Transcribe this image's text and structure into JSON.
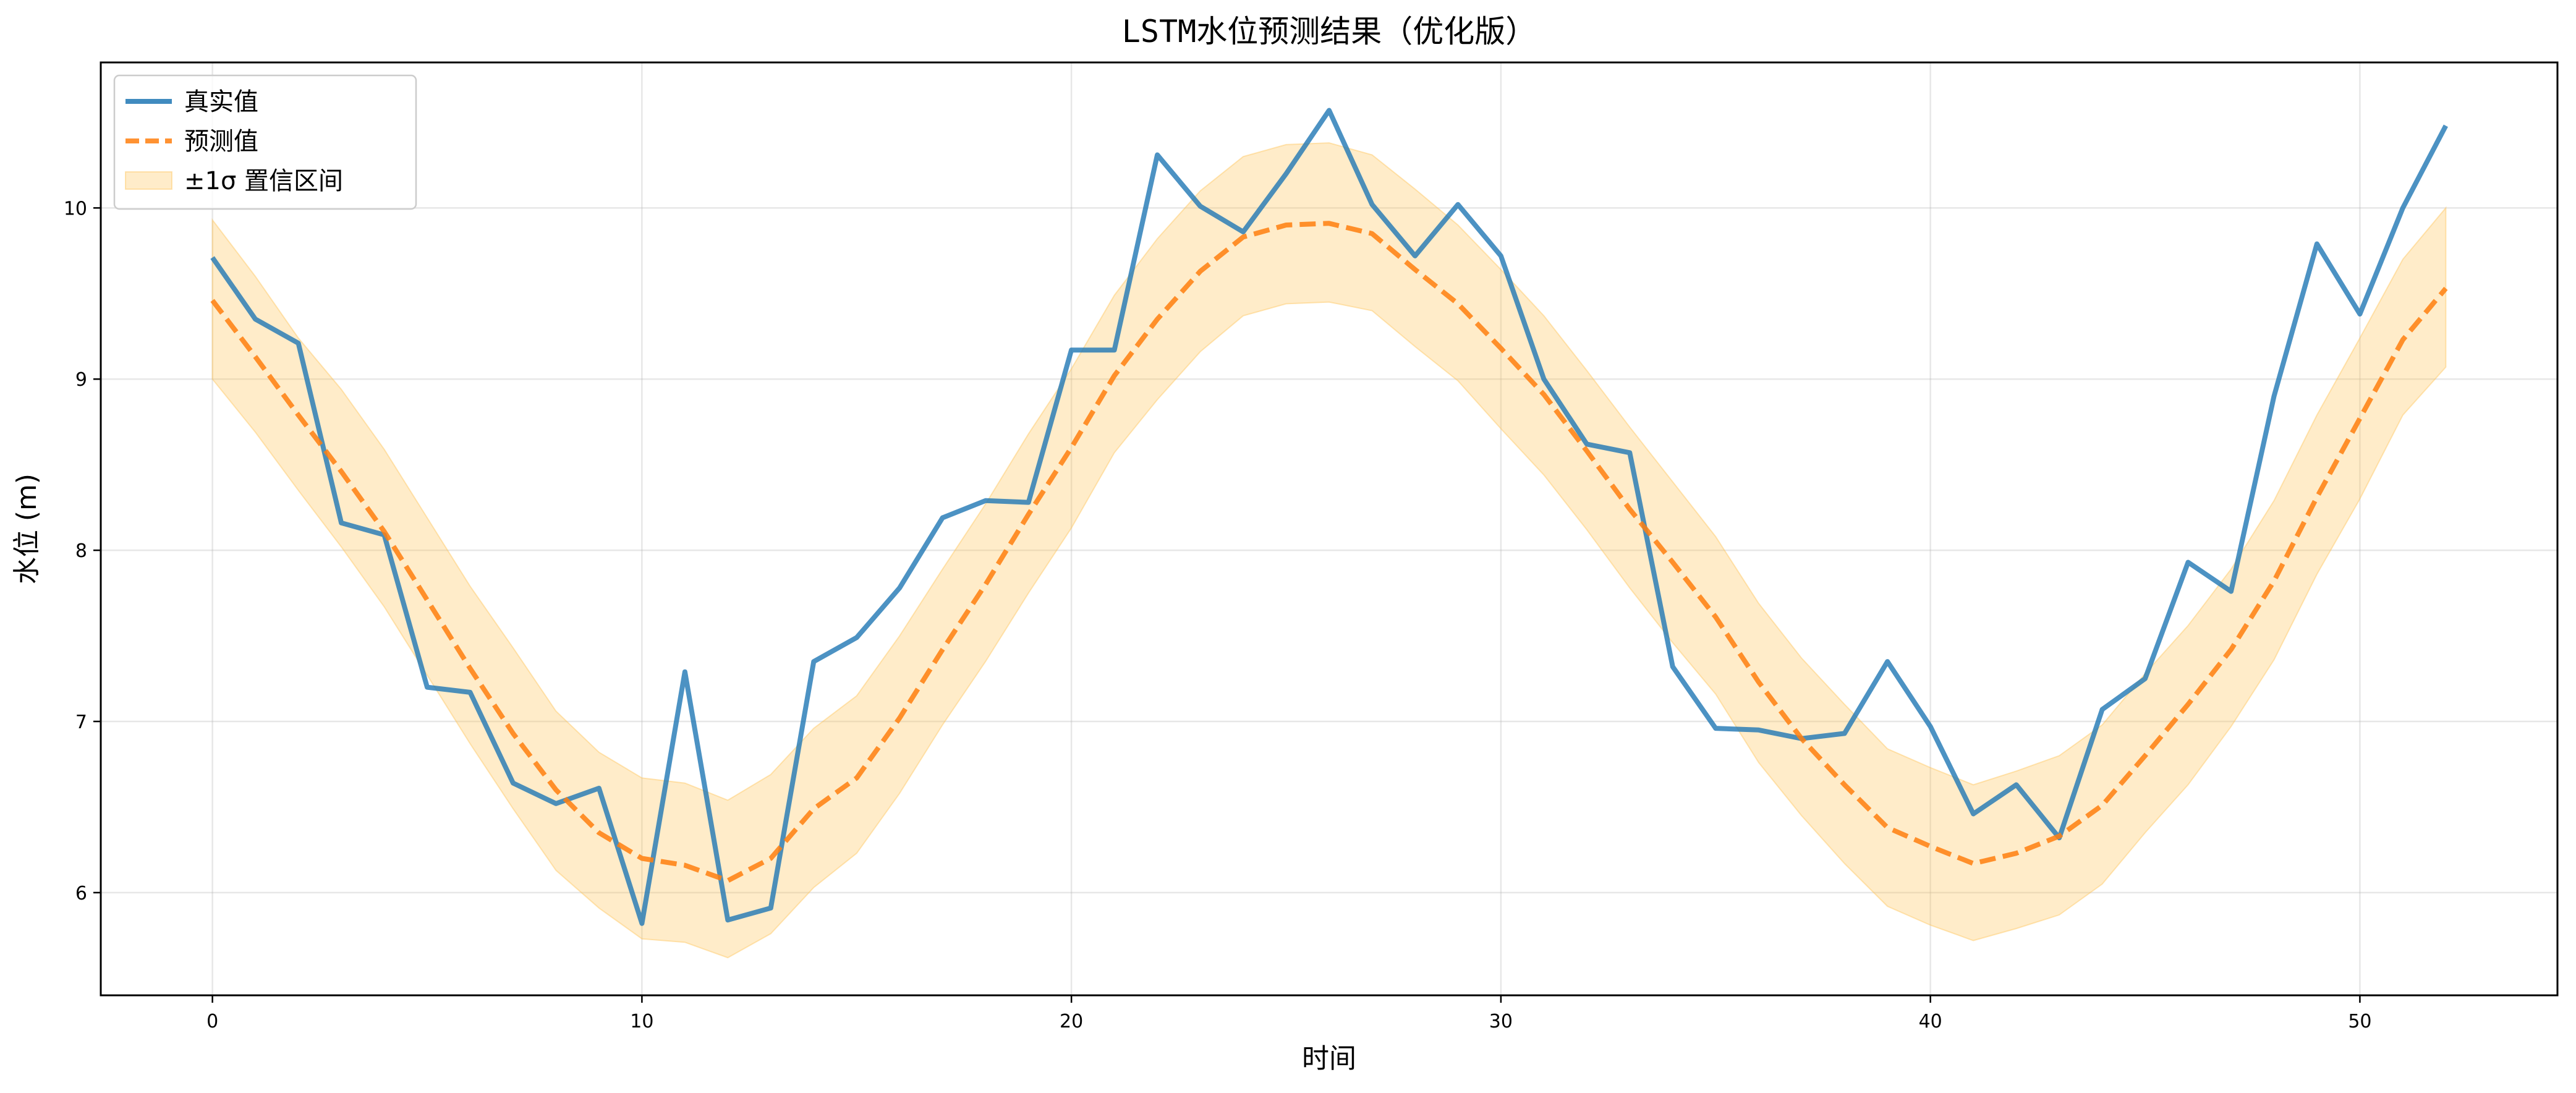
{
  "chart_data": {
    "type": "line",
    "title": "LSTM水位预测结果（优化版）",
    "xlabel": "时间",
    "ylabel": "水位 (m)",
    "xlim": [
      -2.6,
      54.6
    ],
    "ylim": [
      5.4,
      10.85
    ],
    "xticks": [
      0,
      10,
      20,
      30,
      40,
      50
    ],
    "yticks": [
      6,
      7,
      8,
      9,
      10
    ],
    "grid": true,
    "legend_position": "top-left",
    "x": [
      0,
      1,
      2,
      3,
      4,
      5,
      6,
      7,
      8,
      9,
      10,
      11,
      12,
      13,
      14,
      15,
      16,
      17,
      18,
      19,
      20,
      21,
      22,
      23,
      24,
      25,
      26,
      27,
      28,
      29,
      30,
      31,
      32,
      33,
      34,
      35,
      36,
      37,
      38,
      39,
      40,
      41,
      42,
      43,
      44,
      45,
      46,
      47,
      48,
      49,
      50,
      51,
      52
    ],
    "series": [
      {
        "name": "真实值",
        "color": "#1f77b4",
        "style": "solid",
        "values": [
          9.71,
          9.35,
          9.21,
          8.16,
          8.09,
          7.2,
          7.17,
          6.64,
          6.52,
          6.61,
          5.82,
          7.29,
          5.84,
          5.91,
          7.35,
          7.49,
          7.78,
          8.19,
          8.29,
          8.28,
          9.17,
          9.17,
          10.31,
          10.01,
          9.86,
          10.2,
          10.57,
          10.02,
          9.72,
          10.02,
          9.72,
          9.0,
          8.62,
          8.57,
          7.32,
          6.96,
          6.95,
          6.9,
          6.93,
          7.35,
          6.97,
          6.46,
          6.63,
          6.32,
          7.07,
          7.25,
          7.93,
          7.76,
          8.9,
          9.79,
          9.38,
          10.0,
          10.48
        ]
      },
      {
        "name": "预测值",
        "color": "#ff7f0e",
        "style": "dashed",
        "values": [
          9.46,
          9.13,
          8.79,
          8.46,
          8.11,
          7.71,
          7.31,
          6.93,
          6.6,
          6.35,
          6.2,
          6.16,
          6.07,
          6.2,
          6.49,
          6.67,
          7.02,
          7.42,
          7.8,
          8.21,
          8.6,
          9.02,
          9.35,
          9.63,
          9.83,
          9.9,
          9.91,
          9.85,
          9.64,
          9.44,
          9.18,
          8.91,
          8.58,
          8.24,
          7.93,
          7.61,
          7.23,
          6.9,
          6.63,
          6.38,
          6.27,
          6.17,
          6.23,
          6.33,
          6.51,
          6.8,
          7.1,
          7.42,
          7.82,
          8.31,
          8.77,
          9.23,
          9.53
        ]
      }
    ],
    "band": {
      "name": "±1σ 置信区间",
      "color": "#ffc04d",
      "lower": [
        9.0,
        8.69,
        8.35,
        8.02,
        7.67,
        7.27,
        6.87,
        6.49,
        6.13,
        5.91,
        5.73,
        5.71,
        5.62,
        5.76,
        6.03,
        6.23,
        6.58,
        6.98,
        7.35,
        7.75,
        8.13,
        8.57,
        8.88,
        9.16,
        9.37,
        9.44,
        9.45,
        9.4,
        9.19,
        8.99,
        8.71,
        8.44,
        8.12,
        7.78,
        7.46,
        7.16,
        6.76,
        6.45,
        6.17,
        5.92,
        5.81,
        5.72,
        5.79,
        5.87,
        6.05,
        6.35,
        6.63,
        6.97,
        7.36,
        7.86,
        8.3,
        8.79,
        9.07
      ],
      "upper": [
        9.93,
        9.6,
        9.24,
        8.94,
        8.59,
        8.19,
        7.79,
        7.43,
        7.06,
        6.82,
        6.67,
        6.64,
        6.54,
        6.69,
        6.96,
        7.15,
        7.5,
        7.89,
        8.27,
        8.68,
        9.06,
        9.49,
        9.82,
        10.1,
        10.3,
        10.37,
        10.38,
        10.31,
        10.11,
        9.9,
        9.64,
        9.37,
        9.05,
        8.72,
        8.4,
        8.08,
        7.69,
        7.37,
        7.1,
        6.84,
        6.73,
        6.63,
        6.71,
        6.8,
        6.98,
        7.28,
        7.56,
        7.89,
        8.29,
        8.79,
        9.24,
        9.7,
        10.0
      ]
    }
  }
}
